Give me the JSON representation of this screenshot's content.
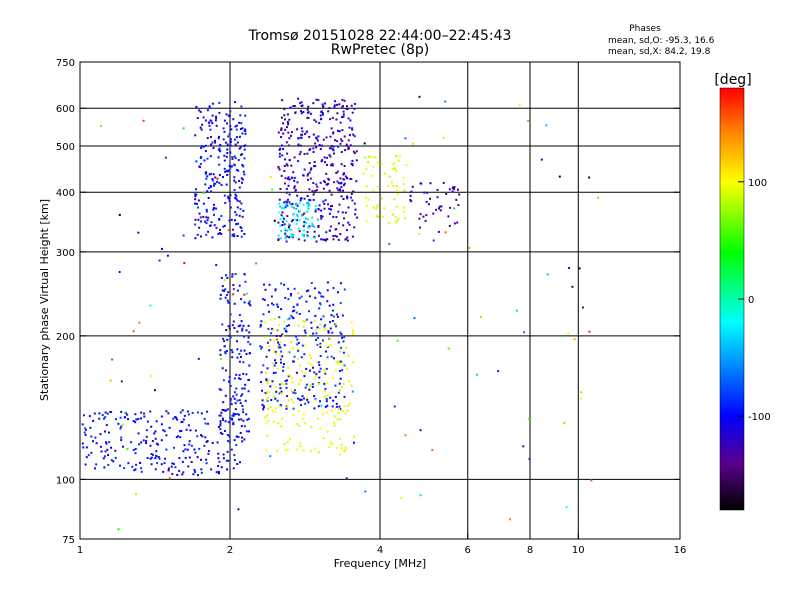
{
  "chart_data": {
    "type": "scatter",
    "title": "Tromsø 20151028 22:44:00–22:45:43",
    "subtitle": "RwPretec (8p)",
    "xlabel": "Frequency [MHz]",
    "ylabel": "Stationary phase Virtual Height [km]",
    "x_scale": "log",
    "y_scale": "log",
    "xlim": [
      1,
      16
    ],
    "ylim": [
      75,
      750
    ],
    "x_ticks": [
      {
        "value": 1,
        "label": "1"
      },
      {
        "value": 2,
        "label": "2"
      },
      {
        "value": 4,
        "label": "4"
      },
      {
        "value": 6,
        "label": "6"
      },
      {
        "value": 8,
        "label": "8"
      },
      {
        "value": 10,
        "label": "10"
      },
      {
        "value": 16,
        "label": "16"
      }
    ],
    "y_ticks": [
      {
        "value": 75,
        "label": "75"
      },
      {
        "value": 100,
        "label": "100"
      },
      {
        "value": 200,
        "label": "200"
      },
      {
        "value": 300,
        "label": "300"
      },
      {
        "value": 400,
        "label": "400"
      },
      {
        "value": 500,
        "label": "500"
      },
      {
        "value": 600,
        "label": "600"
      },
      {
        "value": 750,
        "label": "750"
      }
    ],
    "grid": true,
    "grid_x": [
      2,
      4,
      6,
      8,
      10
    ],
    "grid_y": [
      100,
      200,
      300,
      400,
      500,
      600
    ],
    "stats": {
      "heading": "Phases",
      "line1": "mean, sd,O: -95.3, 16.6",
      "line2": "mean, sd,X:  84.2, 19.8"
    },
    "colorbar": {
      "label": "[deg]",
      "range": [
        -180,
        180
      ],
      "ticks": [
        {
          "value": 100,
          "label": "100"
        },
        {
          "value": 0,
          "label": "0"
        },
        {
          "value": -100,
          "label": "-100"
        }
      ],
      "stops": [
        {
          "value": 180,
          "color": "#ff0000"
        },
        {
          "value": 140,
          "color": "#ff8c00"
        },
        {
          "value": 100,
          "color": "#ffff00"
        },
        {
          "value": 40,
          "color": "#00ff00"
        },
        {
          "value": -20,
          "color": "#00ffff"
        },
        {
          "value": -100,
          "color": "#0000ff"
        },
        {
          "value": -140,
          "color": "#5a008c"
        },
        {
          "value": -180,
          "color": "#000000"
        }
      ]
    },
    "clusters": [
      {
        "name_hint": "F-layer O (low freq)",
        "f": [
          1.7,
          2.15
        ],
        "h": [
          320,
          620
        ],
        "count": 260,
        "phase": [
          -125,
          -80
        ]
      },
      {
        "name_hint": "F-layer O (mid freq)",
        "f": [
          2.5,
          3.6
        ],
        "h": [
          315,
          630
        ],
        "count": 420,
        "phase": [
          -150,
          -90
        ]
      },
      {
        "name_hint": "F-layer cyan",
        "f": [
          2.5,
          3.0
        ],
        "h": [
          320,
          380
        ],
        "count": 70,
        "phase": [
          -40,
          -10
        ]
      },
      {
        "name_hint": "F-layer X",
        "f": [
          3.7,
          4.5
        ],
        "h": [
          340,
          480
        ],
        "count": 60,
        "phase": [
          80,
          110
        ]
      },
      {
        "name_hint": "F-layer high freq",
        "f": [
          4.5,
          5.8
        ],
        "h": [
          330,
          420
        ],
        "count": 45,
        "phase": [
          -150,
          -110
        ]
      },
      {
        "name_hint": "Lower O trace",
        "f": [
          1.0,
          2.1
        ],
        "h": [
          102,
          140
        ],
        "count": 260,
        "phase": [
          -120,
          -80
        ]
      },
      {
        "name_hint": "Lower O branch",
        "f": [
          1.9,
          2.2
        ],
        "h": [
          120,
          270
        ],
        "count": 160,
        "phase": [
          -120,
          -80
        ]
      },
      {
        "name_hint": "Mid O branch",
        "f": [
          2.3,
          3.4
        ],
        "h": [
          140,
          260
        ],
        "count": 260,
        "phase": [
          -120,
          -70
        ]
      },
      {
        "name_hint": "Lower X trace",
        "f": [
          2.35,
          3.55
        ],
        "h": [
          112,
          220
        ],
        "count": 180,
        "phase": [
          85,
          110
        ]
      },
      {
        "name_hint": "Scattered noise",
        "f": [
          1.1,
          11.0
        ],
        "h": [
          78,
          640
        ],
        "count": 110,
        "phase": [
          -180,
          180
        ]
      }
    ]
  }
}
